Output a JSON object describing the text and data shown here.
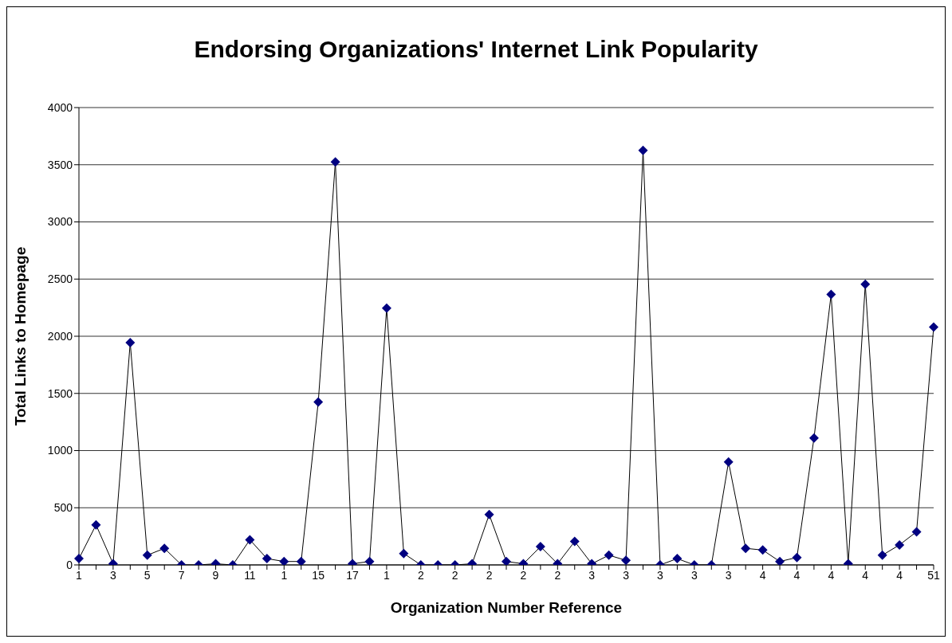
{
  "chart_data": {
    "type": "line",
    "title": "Endorsing Organizations' Internet Link Popularity",
    "xlabel": "Organization Number Reference",
    "ylabel": "Total Links to Homepage",
    "categories": [
      "1",
      null,
      "3",
      null,
      "5",
      null,
      "7",
      null,
      "9",
      null,
      "11",
      null,
      "1",
      null,
      "15",
      null,
      "17",
      null,
      "1",
      null,
      "2",
      null,
      "2",
      null,
      "2",
      null,
      "2",
      null,
      "2",
      null,
      "3",
      null,
      "3",
      null,
      "3",
      null,
      "3",
      null,
      "3",
      null,
      "4",
      null,
      "4",
      null,
      "4",
      null,
      "4",
      null,
      "4",
      null,
      "51"
    ],
    "series": [
      {
        "color": "#000080",
        "values": [
          55,
          350,
          10,
          1945,
          85,
          145,
          0,
          0,
          10,
          0,
          220,
          55,
          30,
          30,
          1425,
          3525,
          10,
          30,
          2245,
          100,
          0,
          0,
          0,
          10,
          440,
          30,
          10,
          160,
          10,
          205,
          10,
          85,
          40,
          3625,
          0,
          55,
          0,
          0,
          900,
          145,
          130,
          30,
          65,
          1110,
          2365,
          10,
          2455,
          85,
          175,
          290,
          2080
        ]
      }
    ],
    "ylim": [
      0,
      4000
    ],
    "yticks": [
      0,
      500,
      1000,
      1500,
      2000,
      2500,
      3000,
      3500,
      4000
    ],
    "grid": "y",
    "marker": "diamond",
    "legend": false
  }
}
